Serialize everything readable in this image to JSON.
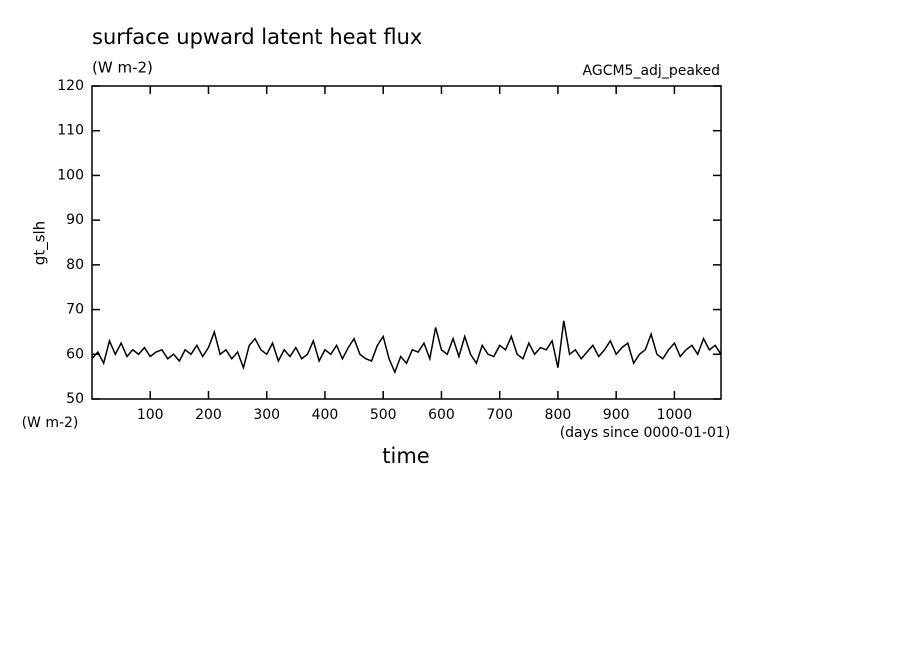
{
  "chart_data": {
    "type": "line",
    "title": "surface upward latent heat flux",
    "subtitle": "(W m-2)",
    "annotation": "AGCM5_adj_peaked",
    "y_label": "gt_slh",
    "y_unit": "(W m-2)",
    "x_label": "time",
    "x_unit": "(days since 0000-01-01)",
    "color": "#000000",
    "xlim": [
      0,
      1080
    ],
    "ylim": [
      50,
      120
    ],
    "xticks": [
      100,
      200,
      300,
      400,
      500,
      600,
      700,
      800,
      900,
      1000
    ],
    "yticks": [
      50,
      60,
      70,
      80,
      90,
      100,
      110,
      120
    ],
    "x": [
      0,
      10,
      20,
      30,
      40,
      50,
      60,
      70,
      80,
      90,
      100,
      110,
      120,
      130,
      140,
      150,
      160,
      170,
      180,
      190,
      200,
      210,
      220,
      230,
      240,
      250,
      260,
      270,
      280,
      290,
      300,
      310,
      320,
      330,
      340,
      350,
      360,
      370,
      380,
      390,
      400,
      410,
      420,
      430,
      440,
      450,
      460,
      470,
      480,
      490,
      500,
      510,
      520,
      530,
      540,
      550,
      560,
      570,
      580,
      590,
      600,
      610,
      620,
      630,
      640,
      650,
      660,
      670,
      680,
      690,
      700,
      710,
      720,
      730,
      740,
      750,
      760,
      770,
      780,
      790,
      800,
      810,
      820,
      830,
      840,
      850,
      860,
      870,
      880,
      890,
      900,
      910,
      920,
      930,
      940,
      950,
      960,
      970,
      980,
      990,
      1000,
      1010,
      1020,
      1030,
      1040,
      1050,
      1060,
      1070,
      1080
    ],
    "values": [
      59,
      60.5,
      58,
      63,
      60,
      62.5,
      59.5,
      61,
      60,
      61.5,
      59.5,
      60.5,
      61,
      59,
      60,
      58.5,
      61,
      60,
      62,
      59.5,
      61.5,
      65,
      60,
      61,
      59,
      60.5,
      57,
      62,
      63.5,
      61,
      60,
      62.5,
      58.5,
      61,
      59.5,
      61.5,
      59,
      60,
      63,
      58.5,
      61,
      60,
      62,
      59,
      61.5,
      63.5,
      60,
      59,
      58.5,
      62,
      64,
      59,
      56,
      59.5,
      58,
      61,
      60.5,
      62.5,
      59,
      66,
      61,
      60,
      63.5,
      59.5,
      64,
      60,
      58,
      62,
      60,
      59.5,
      62,
      61,
      64,
      60,
      59,
      62.5,
      60,
      61.5,
      61,
      63,
      57,
      67.5,
      60,
      61,
      59,
      60.5,
      62,
      59.5,
      61,
      63,
      60,
      61.5,
      62.5,
      58,
      60,
      61,
      64.5,
      60,
      59,
      61,
      62.5,
      59.5,
      61,
      62,
      60,
      63.5,
      61,
      62,
      60
    ]
  }
}
